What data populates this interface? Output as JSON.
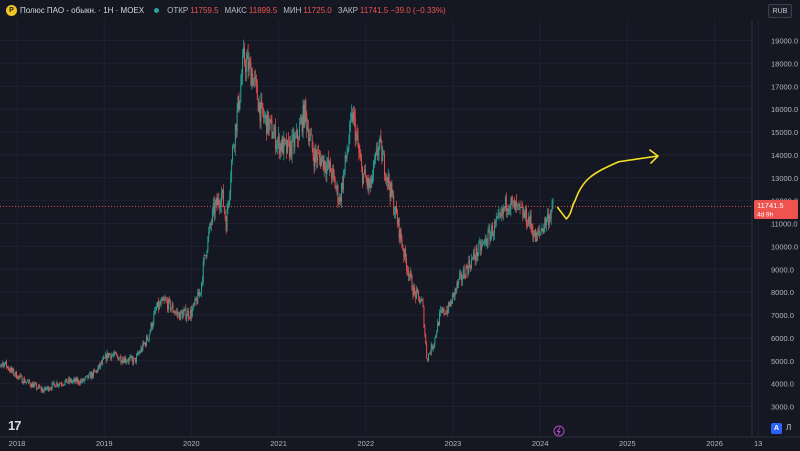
{
  "header": {
    "logo_letter": "P",
    "title": "Полюс ПАО - обыкн. · 1Н · MOEX",
    "ohlc": [
      {
        "label": "ОТКР",
        "value": "11759.5"
      },
      {
        "label": "МАКС",
        "value": "11899.5"
      },
      {
        "label": "МИН",
        "value": "11725.0"
      },
      {
        "label": "ЗАКР",
        "value": "11741.5 −39.0 (−0.33%)"
      }
    ]
  },
  "currency_button": "RUB",
  "price_tag": {
    "price": "11741.5",
    "countdown": "4d 9h"
  },
  "controls": {
    "auto": "A",
    "log": "Л"
  },
  "colors": {
    "up": "#26a69a",
    "down": "#ef5350",
    "arrow": "#f5e025",
    "background": "#151822"
  },
  "chart_data": {
    "type": "candlestick",
    "y_ticks": [
      "19000.0",
      "18000.0",
      "17000.0",
      "16000.0",
      "15000.0",
      "14000.0",
      "13000.0",
      "12000.0",
      "11000.0",
      "10000.0",
      "9000.0",
      "8000.0",
      "7000.0",
      "6000.0",
      "5000.0",
      "4000.0",
      "3000.0"
    ],
    "x_ticks": [
      "2018",
      "2019",
      "2020",
      "2021",
      "2022",
      "2023",
      "2024",
      "2025",
      "2026",
      "13"
    ],
    "ylim": [
      2500,
      19500
    ],
    "last_price": 11741.5,
    "series": [
      {
        "date": "2017.70",
        "value": 4700
      },
      {
        "date": "2017.85",
        "value": 4900
      },
      {
        "date": "2017.95",
        "value": 4500
      },
      {
        "date": "2018.05",
        "value": 4200
      },
      {
        "date": "2018.15",
        "value": 4000
      },
      {
        "date": "2018.30",
        "value": 3700
      },
      {
        "date": "2018.45",
        "value": 4000
      },
      {
        "date": "2018.60",
        "value": 4100
      },
      {
        "date": "2018.75",
        "value": 4100
      },
      {
        "date": "2018.90",
        "value": 4500
      },
      {
        "date": "2019.05",
        "value": 5300
      },
      {
        "date": "2019.20",
        "value": 5100
      },
      {
        "date": "2019.35",
        "value": 5000
      },
      {
        "date": "2019.50",
        "value": 6000
      },
      {
        "date": "2019.60",
        "value": 7300
      },
      {
        "date": "2019.70",
        "value": 7600
      },
      {
        "date": "2019.85",
        "value": 7000
      },
      {
        "date": "2020.00",
        "value": 7100
      },
      {
        "date": "2020.10",
        "value": 8000
      },
      {
        "date": "2020.15",
        "value": 9500
      },
      {
        "date": "2020.25",
        "value": 11500
      },
      {
        "date": "2020.35",
        "value": 12300
      },
      {
        "date": "2020.40",
        "value": 11000
      },
      {
        "date": "2020.48",
        "value": 14500
      },
      {
        "date": "2020.55",
        "value": 16500
      },
      {
        "date": "2020.60",
        "value": 18200
      },
      {
        "date": "2020.70",
        "value": 17500
      },
      {
        "date": "2020.80",
        "value": 15800
      },
      {
        "date": "2020.90",
        "value": 15200
      },
      {
        "date": "2021.00",
        "value": 14500
      },
      {
        "date": "2021.10",
        "value": 14200
      },
      {
        "date": "2021.20",
        "value": 14600
      },
      {
        "date": "2021.30",
        "value": 15900
      },
      {
        "date": "2021.40",
        "value": 14000
      },
      {
        "date": "2021.50",
        "value": 13800
      },
      {
        "date": "2021.60",
        "value": 13300
      },
      {
        "date": "2021.70",
        "value": 12000
      },
      {
        "date": "2021.80",
        "value": 14500
      },
      {
        "date": "2021.85",
        "value": 15800
      },
      {
        "date": "2021.95",
        "value": 13300
      },
      {
        "date": "2022.05",
        "value": 12500
      },
      {
        "date": "2022.15",
        "value": 14500
      },
      {
        "date": "2022.25",
        "value": 13000
      },
      {
        "date": "2022.35",
        "value": 11300
      },
      {
        "date": "2022.45",
        "value": 9500
      },
      {
        "date": "2022.55",
        "value": 8000
      },
      {
        "date": "2022.65",
        "value": 7500
      },
      {
        "date": "2022.70",
        "value": 5100
      },
      {
        "date": "2022.78",
        "value": 5800
      },
      {
        "date": "2022.85",
        "value": 7000
      },
      {
        "date": "2022.95",
        "value": 7300
      },
      {
        "date": "2023.05",
        "value": 8300
      },
      {
        "date": "2023.15",
        "value": 9000
      },
      {
        "date": "2023.25",
        "value": 9600
      },
      {
        "date": "2023.35",
        "value": 10100
      },
      {
        "date": "2023.45",
        "value": 10700
      },
      {
        "date": "2023.55",
        "value": 11200
      },
      {
        "date": "2023.62",
        "value": 12000
      },
      {
        "date": "2023.70",
        "value": 11700
      },
      {
        "date": "2023.80",
        "value": 11400
      },
      {
        "date": "2023.88",
        "value": 11100
      },
      {
        "date": "2023.95",
        "value": 10300
      },
      {
        "date": "2024.05",
        "value": 11000
      },
      {
        "date": "2024.15",
        "value": 11700
      }
    ],
    "annotation": {
      "type": "forecast-arrow",
      "points": [
        {
          "date": "2024.20",
          "value": 11700
        },
        {
          "date": "2024.30",
          "value": 11200
        },
        {
          "date": "2024.40",
          "value": 12000
        },
        {
          "date": "2024.60",
          "value": 13200
        },
        {
          "date": "2024.90",
          "value": 13700
        },
        {
          "date": "2025.35",
          "value": 13950
        }
      ]
    }
  }
}
